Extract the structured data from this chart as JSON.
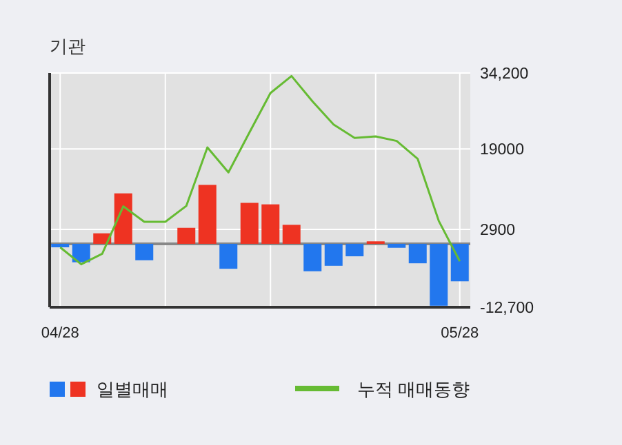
{
  "chart_data": {
    "type": "bar",
    "title": "기관",
    "categories": [
      "04/28",
      null,
      null,
      null,
      null,
      null,
      null,
      null,
      null,
      null,
      null,
      null,
      null,
      null,
      null,
      null,
      null,
      null,
      null,
      "05/28"
    ],
    "series": [
      {
        "name": "일별매매",
        "colors": [
          "#2277ee",
          "#2277ee",
          "#ee3322",
          "#ee3322",
          "#2277ee",
          "#ee3322",
          "#ee3322",
          "#ee3322",
          "#2277ee",
          "#ee3322",
          "#ee3322",
          "#ee3322",
          "#2277ee",
          "#2277ee",
          "#2277ee",
          "#ee3322",
          "#2277ee",
          "#2277ee",
          "#2277ee",
          "#2277ee"
        ],
        "values": [
          -700,
          -3700,
          2100,
          10100,
          -3300,
          0,
          3200,
          11800,
          -5000,
          8200,
          7900,
          3800,
          -5500,
          -4400,
          -2500,
          500,
          -800,
          -3900,
          -12400,
          -7500
        ]
      },
      {
        "name": "누적 매매동향",
        "type": "line",
        "color": "#66bb33",
        "values": [
          -700,
          -4100,
          -2000,
          7500,
          4400,
          4400,
          7600,
          19300,
          14300,
          22300,
          30200,
          33600,
          28500,
          23900,
          21200,
          21500,
          20600,
          17000,
          4600,
          -3500
        ]
      }
    ],
    "ylim": [
      -12700,
      34200
    ],
    "yticks": [
      {
        "value": 34200,
        "label": "34,200"
      },
      19000,
      2900,
      {
        "value": -12700,
        "label": "-12,700"
      }
    ],
    "grid": true,
    "legend": "bottom",
    "ref_lines": [
      {
        "axis": "y",
        "value": 0,
        "color": "#888888"
      }
    ]
  }
}
